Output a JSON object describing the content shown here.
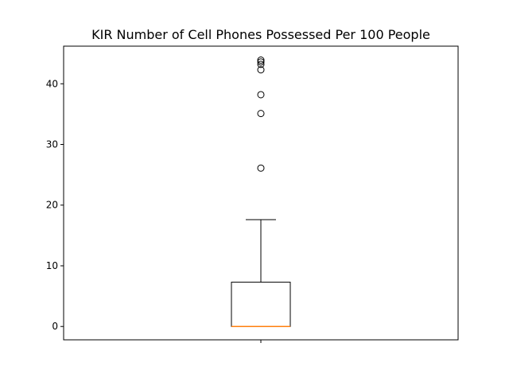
{
  "chart_data": {
    "type": "box",
    "title": "KIR Number of Cell Phones Possessed Per 100 People",
    "xlabel": "",
    "ylabel": "",
    "ylim": [
      -2.2,
      46.2
    ],
    "yticks": [
      0,
      10,
      20,
      30,
      40
    ],
    "grid": false,
    "box": {
      "median": 0.0,
      "q1": 0.0,
      "q3": 7.3,
      "whisker_low": 0.0,
      "whisker_high": 17.6,
      "outliers": [
        26.1,
        35.1,
        38.2,
        42.3,
        43.2,
        43.6,
        43.9
      ]
    },
    "colors": {
      "median": "#ff7f0e",
      "box": "#000000",
      "outlier_edge": "#000000"
    }
  }
}
